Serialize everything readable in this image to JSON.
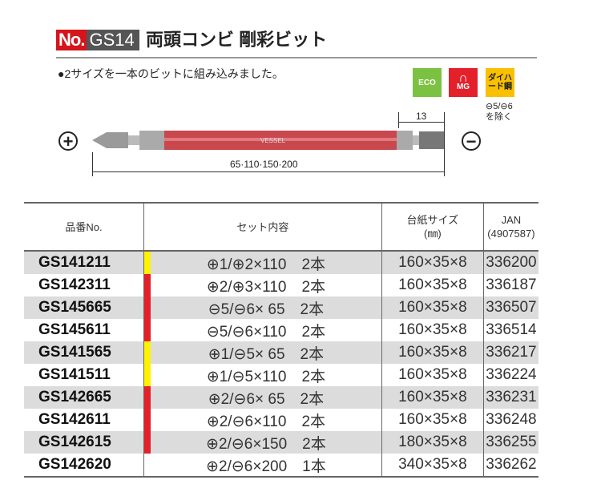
{
  "header": {
    "no_label": "No.",
    "model": "GS14",
    "title": "両頭コンビ 剛彩ビット"
  },
  "feature": "●2サイズを一本のビットに組み込みました。",
  "icons": {
    "eco": "ECO",
    "mg": "MG",
    "hard": "ダイハード鋼",
    "note_line1": "⊖5/⊖6",
    "note_line2": "を除く"
  },
  "diagram": {
    "left_symbol": "+",
    "right_symbol": "−",
    "tip_length": "13",
    "lengths": "65·110·150·200",
    "brand": "VESSEL"
  },
  "colors": {
    "red": "#e4202a",
    "yellow": "#fff200",
    "shade": "#dcdcdc"
  },
  "table": {
    "headers": {
      "code": "品番No.",
      "content": "セット内容",
      "size_line1": "台紙サイズ",
      "size_line2": "(㎜)",
      "jan_line1": "JAN",
      "jan_line2": "(4907587)"
    },
    "rows": [
      {
        "code": "GS141211",
        "color": "yellow",
        "content": "⊕1/⊕2×110　2本",
        "size": "160×35×8",
        "jan": "336200"
      },
      {
        "code": "GS142311",
        "color": "red",
        "content": "⊕2/⊕3×110　2本",
        "size": "160×35×8",
        "jan": "336187"
      },
      {
        "code": "GS145665",
        "color": "red",
        "content": "⊖5/⊖6×  65　2本",
        "size": "160×35×8",
        "jan": "336507"
      },
      {
        "code": "GS145611",
        "color": "red",
        "content": "⊖5/⊖6×110　2本",
        "size": "160×35×8",
        "jan": "336514"
      },
      {
        "code": "GS141565",
        "color": "yellow",
        "content": "⊕1/⊖5×  65　2本",
        "size": "160×35×8",
        "jan": "336217"
      },
      {
        "code": "GS141511",
        "color": "yellow",
        "content": "⊕1/⊖5×110　2本",
        "size": "160×35×8",
        "jan": "336224"
      },
      {
        "code": "GS142665",
        "color": "red",
        "content": "⊕2/⊖6×  65　2本",
        "size": "160×35×8",
        "jan": "336231"
      },
      {
        "code": "GS142611",
        "color": "red",
        "content": "⊕2/⊖6×110　2本",
        "size": "160×35×8",
        "jan": "336248"
      },
      {
        "code": "GS142615",
        "color": "red",
        "content": "⊕2/⊖6×150　2本",
        "size": "180×35×8",
        "jan": "336255"
      },
      {
        "code": "GS142620",
        "color": "none",
        "content": "⊕2/⊖6×200　1本",
        "size": "340×35×8",
        "jan": "336262"
      }
    ]
  }
}
